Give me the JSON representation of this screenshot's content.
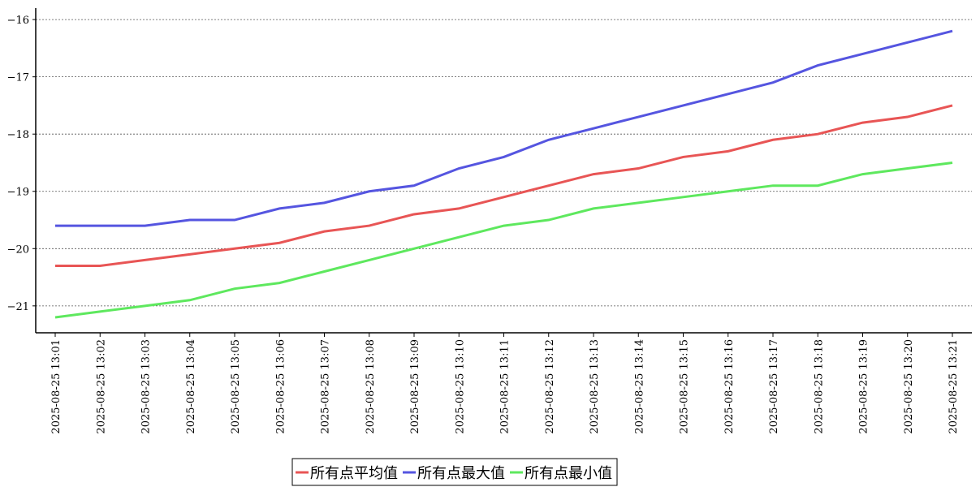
{
  "chart_data": {
    "type": "line",
    "categories": [
      "2025-08-25 13:01",
      "2025-08-25 13:02",
      "2025-08-25 13:03",
      "2025-08-25 13:04",
      "2025-08-25 13:05",
      "2025-08-25 13:06",
      "2025-08-25 13:07",
      "2025-08-25 13:08",
      "2025-08-25 13:09",
      "2025-08-25 13:10",
      "2025-08-25 13:11",
      "2025-08-25 13:12",
      "2025-08-25 13:13",
      "2025-08-25 13:14",
      "2025-08-25 13:15",
      "2025-08-25 13:16",
      "2025-08-25 13:17",
      "2025-08-25 13:18",
      "2025-08-25 13:19",
      "2025-08-25 13:20",
      "2025-08-25 13:21"
    ],
    "series": [
      {
        "name": "所有点平均值",
        "color": "#e85555",
        "values": [
          -20.3,
          -20.3,
          -20.2,
          -20.1,
          -20.0,
          -19.9,
          -19.7,
          -19.6,
          -19.4,
          -19.3,
          -19.1,
          -18.9,
          -18.7,
          -18.6,
          -18.4,
          -18.3,
          -18.1,
          -18.0,
          -17.8,
          -17.7,
          -17.5
        ]
      },
      {
        "name": "所有点最大值",
        "color": "#5555e0",
        "values": [
          -19.6,
          -19.6,
          -19.6,
          -19.5,
          -19.5,
          -19.3,
          -19.2,
          -19.0,
          -18.9,
          -18.6,
          -18.4,
          -18.1,
          -17.9,
          -17.7,
          -17.5,
          -17.3,
          -17.1,
          -16.8,
          -16.6,
          -16.4,
          -16.2
        ]
      },
      {
        "name": "所有点最小值",
        "color": "#5ee85e",
        "values": [
          -21.2,
          -21.1,
          -21.0,
          -20.9,
          -20.7,
          -20.6,
          -20.4,
          -20.2,
          -20.0,
          -19.8,
          -19.6,
          -19.5,
          -19.3,
          -19.2,
          -19.1,
          -19.0,
          -18.9,
          -18.9,
          -18.7,
          -18.6,
          -18.5
        ]
      }
    ],
    "ylim": [
      -21.47,
      -15.8
    ],
    "yticks": [
      {
        "value": -21,
        "label": "−21"
      },
      {
        "value": -20,
        "label": "−20"
      },
      {
        "value": -19,
        "label": "−19"
      },
      {
        "value": -18,
        "label": "−18"
      },
      {
        "value": -17,
        "label": "−17"
      },
      {
        "value": -16,
        "label": "−16"
      }
    ],
    "grid": true
  }
}
